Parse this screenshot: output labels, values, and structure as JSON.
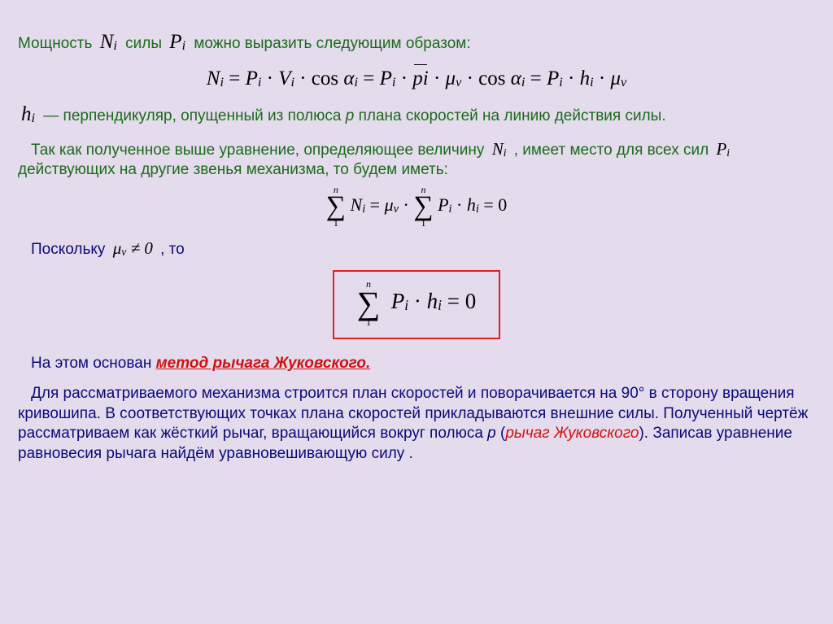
{
  "colors": {
    "background": "#e4dbec",
    "text_blue": "#0a0a7a",
    "text_green": "#1a6b1a",
    "text_red": "#d01010",
    "formula_black": "#000000",
    "box_border": "#e02020"
  },
  "typography": {
    "body_family": "Arial",
    "body_size_pt": 14,
    "formula_family": "Times New Roman",
    "formula_style": "italic"
  },
  "line1": {
    "a": "Мощность ",
    "sym_N": "N",
    "sub_i": "i",
    "b": " силы ",
    "sym_P": "P",
    "c": " можно выразить следующим образом:"
  },
  "eq1": {
    "text": "Nᵢ = Pᵢ · Vᵢ · cos αᵢ = Pᵢ · p̅i̅ · μᵥ · cos αᵢ = Pᵢ · hᵢ · μᵥ"
  },
  "line2": {
    "sym_h": "h",
    "sub_i": "i",
    "a": " — перпендикуляр, опущенный из полюса ",
    "p": "р",
    "b": " плана скоростей на линию действия силы."
  },
  "line3": {
    "a": "Так как полученное выше уравнение, определяющее величину ",
    "sym_N": "N",
    "sub_i": "i",
    "b": " , имеет место для всех сил ",
    "sym_P": "P",
    "c": " действующих на другие звенья механизма, то будем иметь:"
  },
  "eq2": {
    "upper": "n",
    "lower": "1",
    "lhs": "Nᵢ",
    "mid": " = μᵥ · ",
    "rhs": "Pᵢ · hᵢ = 0"
  },
  "line4": {
    "a": "Поскольку  ",
    "mu": "μ",
    "sub_v": "v",
    "neq": " ≠ 0",
    "b": " , то"
  },
  "eq3": {
    "upper": "n",
    "lower": "1",
    "body": "Pᵢ · hᵢ = 0"
  },
  "line5": {
    "a": "На этом основан ",
    "method": "метод рычага Жуковского."
  },
  "line6": {
    "text": "Для рассматриваемого механизма строится план скоростей и поворачивается на 90° в сторону вращения кривошипа. В соответствующих точках плана скоростей прикладываются внешние силы. Полученный чертёж рассматриваем как жёсткий рычаг, вращающийся вокруг полюса ",
    "p": "р",
    "open": " (",
    "lever": "рычаг Жуковского",
    "close": "). Записав уравнение равновесия рычага найдём уравновешивающую силу         ."
  }
}
